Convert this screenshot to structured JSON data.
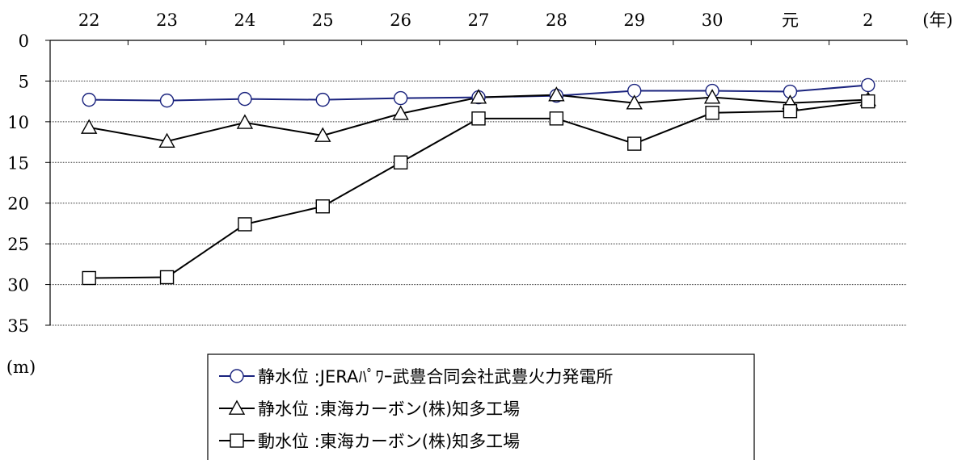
{
  "chart_data": {
    "type": "line",
    "categories": [
      "22",
      "23",
      "24",
      "25",
      "26",
      "27",
      "28",
      "29",
      "30",
      "元",
      "2"
    ],
    "x_unit": "(年)",
    "y_unit": "(m)",
    "ylim": [
      0,
      35
    ],
    "y_inverted": true,
    "y_ticks": [
      0,
      5,
      10,
      15,
      20,
      25,
      30,
      35
    ],
    "grid": "horizontal",
    "legend_position": "bottom",
    "series": [
      {
        "name": "静水位 :JERAﾊﾟﾜｰ武豊合同会社武豊火力発電所",
        "marker": "circle",
        "color": "#1a237e",
        "values": [
          7.3,
          7.4,
          7.2,
          7.3,
          7.1,
          7.0,
          6.8,
          6.2,
          6.2,
          6.3,
          5.5
        ]
      },
      {
        "name": "静水位 :東海カーボン(株)知多工場",
        "marker": "triangle",
        "color": "#000000",
        "values": [
          10.7,
          12.4,
          10.1,
          11.7,
          9.0,
          7.0,
          6.7,
          7.7,
          7.0,
          7.7,
          7.3
        ]
      },
      {
        "name": "動水位 :東海カーボン(株)知多工場",
        "marker": "square",
        "color": "#000000",
        "values": [
          29.2,
          29.1,
          22.6,
          20.4,
          15.0,
          9.6,
          9.6,
          12.7,
          8.9,
          8.7,
          7.5
        ]
      }
    ]
  }
}
